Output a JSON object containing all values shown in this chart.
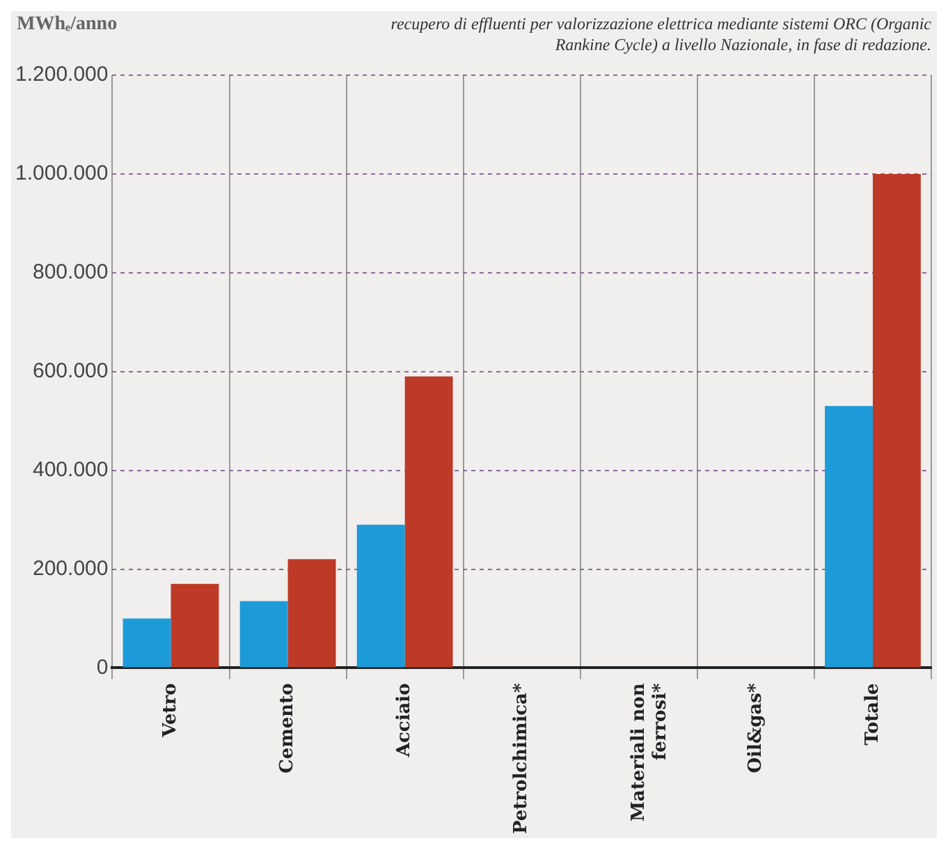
{
  "chart_data": {
    "type": "bar",
    "ylabel": "MWhₑ/anno",
    "annotations": [
      "recupero di effluenti per valorizzazione elettrica mediante sistemi ORC (Organic Rankine Cycle) a livello Nazionale, in fase di redazione."
    ],
    "categories": [
      "Vetro",
      "Cemento",
      "Acciaio",
      "Petrolchimica*",
      "Materiali non ferrosi*",
      "Oil&gas*",
      "Totale"
    ],
    "series": [
      {
        "color": "#1d9ad8",
        "values": [
          100000,
          135000,
          290000,
          0,
          0,
          0,
          530000
        ]
      },
      {
        "color": "#bd3a26",
        "values": [
          170000,
          220000,
          590000,
          0,
          0,
          0,
          1000000
        ]
      }
    ],
    "ylim": [
      0,
      1200000
    ],
    "yticks": [
      {
        "value": 0,
        "label": "0"
      },
      {
        "value": 200000,
        "label": "200.000"
      },
      {
        "value": 400000,
        "label": "400.000"
      },
      {
        "value": 600000,
        "label": "600.000"
      },
      {
        "value": 800000,
        "label": "800.000"
      },
      {
        "value": 1000000,
        "label": "1.000.000"
      },
      {
        "value": 1200000,
        "label": "1.200.000"
      }
    ],
    "grid": true,
    "legend": false
  }
}
